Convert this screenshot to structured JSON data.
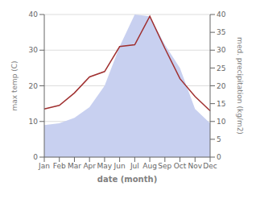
{
  "chart_data": {
    "type": "line",
    "categories": [
      "Jan",
      "Feb",
      "Mar",
      "Apr",
      "May",
      "Jun",
      "Jul",
      "Aug",
      "Sep",
      "Oct",
      "Nov",
      "Dec"
    ],
    "xlabel": "date (month)",
    "ylabel": "max temp (C)",
    "y2label": "med. precipitation (kg/m2)",
    "series": [
      {
        "type": "area",
        "color": "#c8d0f0",
        "axis": "y2",
        "values": [
          9.0,
          9.5,
          11.0,
          14.0,
          20.0,
          31.0,
          40.0,
          39.5,
          31.5,
          25.0,
          13.5,
          9.5
        ]
      },
      {
        "type": "line",
        "color": "#a03030",
        "values": [
          13.5,
          14.5,
          18.0,
          22.5,
          24.0,
          31.0,
          31.5,
          39.5,
          30.5,
          22.0,
          17.0,
          13.0
        ]
      }
    ],
    "ylim": [
      0,
      40
    ],
    "yticks": [
      0,
      10,
      20,
      30,
      40
    ],
    "y2lim": [
      0,
      40
    ],
    "y2ticks": [
      0,
      5,
      10,
      15,
      20,
      25,
      30,
      35,
      40
    ],
    "grid": true
  }
}
